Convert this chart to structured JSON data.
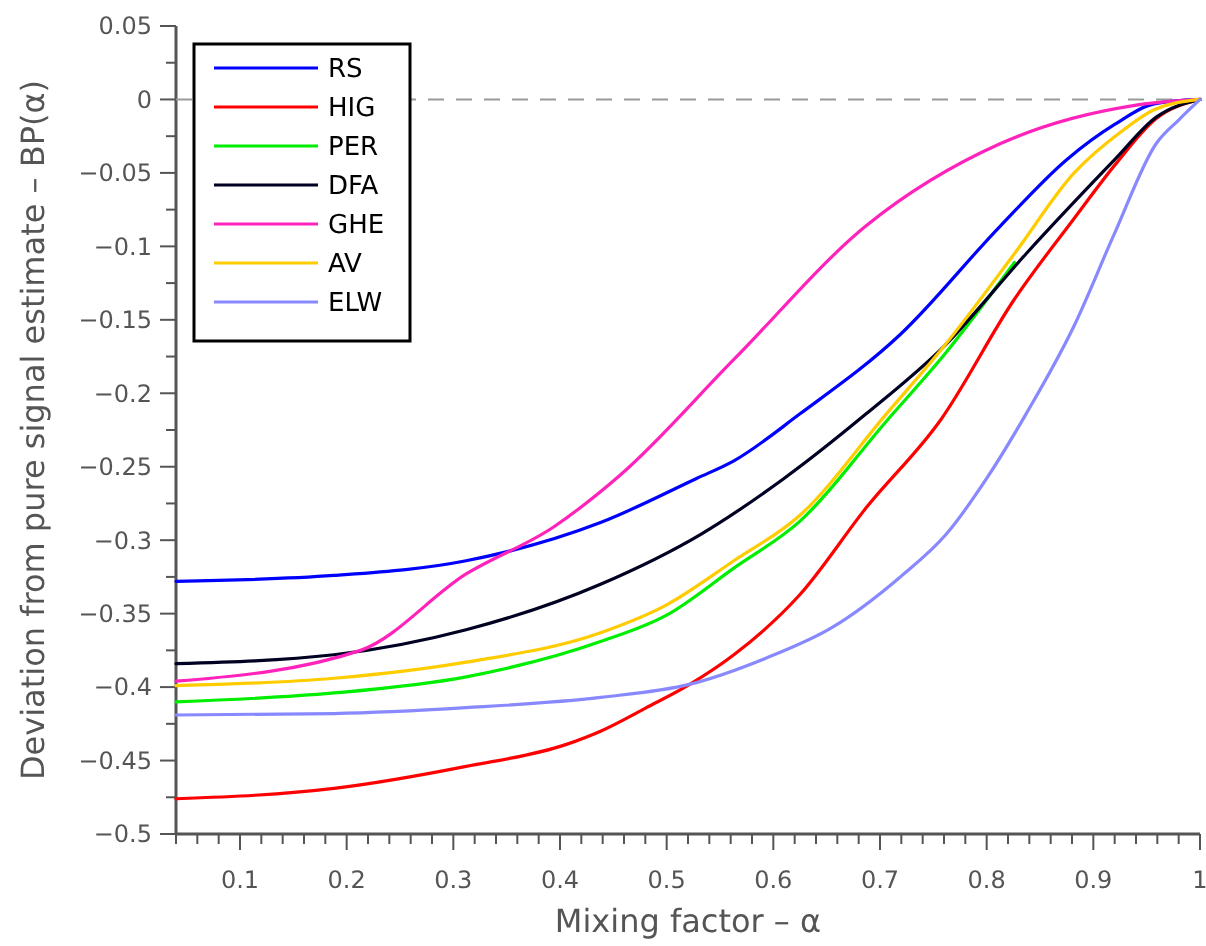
{
  "chart_data": {
    "type": "line",
    "xlabel": "Mixing factor – α",
    "ylabel": "Deviation from pure signal estimate – BP(α)",
    "xlim": [
      0.04,
      1
    ],
    "ylim": [
      -0.5,
      0.05
    ],
    "xticks": [
      {
        "value": 0.04,
        "label": null
      },
      {
        "value": 0.06,
        "label": null
      },
      {
        "value": 0.08,
        "label": null
      },
      0.1,
      {
        "value": 0.12,
        "label": null
      },
      {
        "value": 0.14,
        "label": null
      },
      {
        "value": 0.16,
        "label": null
      },
      {
        "value": 0.18,
        "label": null
      },
      0.2,
      {
        "value": 0.22,
        "label": null
      },
      {
        "value": 0.24,
        "label": null
      },
      {
        "value": 0.26,
        "label": null
      },
      {
        "value": 0.28,
        "label": null
      },
      0.3,
      {
        "value": 0.32,
        "label": null
      },
      {
        "value": 0.34,
        "label": null
      },
      {
        "value": 0.36,
        "label": null
      },
      {
        "value": 0.38,
        "label": null
      },
      0.4,
      {
        "value": 0.42,
        "label": null
      },
      {
        "value": 0.44,
        "label": null
      },
      {
        "value": 0.46,
        "label": null
      },
      {
        "value": 0.48,
        "label": null
      },
      0.5,
      {
        "value": 0.52,
        "label": null
      },
      {
        "value": 0.54,
        "label": null
      },
      {
        "value": 0.56,
        "label": null
      },
      {
        "value": 0.58,
        "label": null
      },
      0.6,
      {
        "value": 0.62,
        "label": null
      },
      {
        "value": 0.64,
        "label": null
      },
      {
        "value": 0.66,
        "label": null
      },
      {
        "value": 0.68,
        "label": null
      },
      0.7,
      {
        "value": 0.72,
        "label": null
      },
      {
        "value": 0.74,
        "label": null
      },
      {
        "value": 0.76,
        "label": null
      },
      {
        "value": 0.78,
        "label": null
      },
      0.8,
      {
        "value": 0.82,
        "label": null
      },
      {
        "value": 0.84,
        "label": null
      },
      {
        "value": 0.86,
        "label": null
      },
      {
        "value": 0.88,
        "label": null
      },
      0.9,
      {
        "value": 0.92,
        "label": null
      },
      {
        "value": 0.94,
        "label": null
      },
      {
        "value": 0.96,
        "label": null
      },
      {
        "value": 0.98,
        "label": null
      },
      1
    ],
    "yticks": [
      {
        "value": -0.5,
        "label": "−0.5"
      },
      {
        "value": -0.475,
        "label": null
      },
      {
        "value": -0.45,
        "label": "−0.45"
      },
      {
        "value": -0.425,
        "label": null
      },
      {
        "value": -0.4,
        "label": "−0.4"
      },
      {
        "value": -0.375,
        "label": null
      },
      {
        "value": -0.35,
        "label": "−0.35"
      },
      {
        "value": -0.325,
        "label": null
      },
      {
        "value": -0.3,
        "label": "−0.3"
      },
      {
        "value": -0.275,
        "label": null
      },
      {
        "value": -0.25,
        "label": "−0.25"
      },
      {
        "value": -0.225,
        "label": null
      },
      {
        "value": -0.2,
        "label": "−0.2"
      },
      {
        "value": -0.175,
        "label": null
      },
      {
        "value": -0.15,
        "label": "−0.15"
      },
      {
        "value": -0.125,
        "label": null
      },
      {
        "value": -0.1,
        "label": "−0.1"
      },
      {
        "value": -0.075,
        "label": null
      },
      {
        "value": -0.05,
        "label": "−0.05"
      },
      {
        "value": -0.025,
        "label": null
      },
      0,
      {
        "value": 0.025,
        "label": null
      },
      0.05
    ],
    "legend": "top left",
    "grid": false,
    "marker": "none",
    "line_style": "solid",
    "ref_lines": [
      {
        "axis": "y",
        "value": 0,
        "color": "#999999",
        "line_style": "dashed"
      }
    ],
    "series": [
      {
        "name": "RS",
        "color": "#0000ff",
        "x": [
          0.04,
          0.188,
          0.312,
          0.438,
          0.528,
          0.563,
          0.625,
          0.719,
          0.813,
          0.875,
          0.92,
          0.957,
          1
        ],
        "values": [
          -0.328,
          -0.324,
          -0.314,
          -0.288,
          -0.258,
          -0.246,
          -0.214,
          -0.16,
          -0.086,
          -0.041,
          -0.017,
          -0.003,
          0
        ]
      },
      {
        "name": "HIG",
        "color": "#ff0000",
        "x": [
          0.04,
          0.188,
          0.312,
          0.406,
          0.438,
          0.481,
          0.522,
          0.563,
          0.625,
          0.687,
          0.757,
          0.826,
          0.882,
          0.922,
          0.959,
          1
        ],
        "values": [
          -0.476,
          -0.469,
          -0.454,
          -0.439,
          -0.43,
          -0.414,
          -0.398,
          -0.378,
          -0.337,
          -0.278,
          -0.218,
          -0.136,
          -0.081,
          -0.043,
          -0.013,
          0
        ]
      },
      {
        "name": "PER",
        "color": "#00ee00",
        "x": [
          0.04,
          0.188,
          0.312,
          0.438,
          0.5,
          0.563,
          0.625,
          0.706,
          0.76,
          0.826
        ],
        "values": [
          -0.41,
          -0.404,
          -0.393,
          -0.369,
          -0.351,
          -0.319,
          -0.287,
          -0.219,
          -0.174,
          -0.111
        ]
      },
      {
        "name": "DFA",
        "color": "#000022",
        "x": [
          0.04,
          0.188,
          0.312,
          0.438,
          0.532,
          0.61,
          0.687,
          0.76,
          0.837,
          0.92,
          0.959,
          1
        ],
        "values": [
          -0.384,
          -0.378,
          -0.361,
          -0.33,
          -0.296,
          -0.258,
          -0.214,
          -0.168,
          -0.105,
          -0.041,
          -0.012,
          0
        ]
      },
      {
        "name": "GHE",
        "color": "#ff22bb",
        "x": [
          0.04,
          0.213,
          0.312,
          0.394,
          0.456,
          0.563,
          0.687,
          0.813,
          0.939,
          1
        ],
        "values": [
          -0.396,
          -0.375,
          -0.323,
          -0.291,
          -0.256,
          -0.177,
          -0.086,
          -0.03,
          -0.004,
          0
        ]
      },
      {
        "name": "AV",
        "color": "#ffcc00",
        "x": [
          0.04,
          0.188,
          0.312,
          0.438,
          0.5,
          0.563,
          0.625,
          0.706,
          0.76,
          0.826,
          0.882,
          0.926,
          0.957,
          1
        ],
        "values": [
          -0.399,
          -0.394,
          -0.383,
          -0.363,
          -0.344,
          -0.314,
          -0.283,
          -0.214,
          -0.168,
          -0.105,
          -0.05,
          -0.022,
          -0.007,
          0
        ]
      },
      {
        "name": "ELW",
        "color": "#8888ff",
        "x": [
          0.04,
          0.188,
          0.312,
          0.438,
          0.522,
          0.594,
          0.656,
          0.719,
          0.762,
          0.8,
          0.837,
          0.882,
          0.92,
          0.959,
          0.98,
          1
        ],
        "values": [
          -0.419,
          -0.418,
          -0.414,
          -0.407,
          -0.398,
          -0.38,
          -0.359,
          -0.325,
          -0.296,
          -0.258,
          -0.214,
          -0.154,
          -0.091,
          -0.03,
          -0.014,
          0
        ]
      }
    ]
  }
}
